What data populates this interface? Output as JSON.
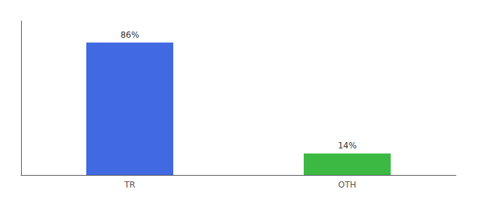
{
  "chart_data": {
    "type": "bar",
    "categories": [
      "TR",
      "OTH"
    ],
    "values": [
      86,
      14
    ],
    "value_labels": [
      "86%",
      "14%"
    ],
    "colors": [
      "#4169e1",
      "#3cb943"
    ],
    "ylim": [
      0,
      100
    ],
    "grid": false,
    "data_labels": true,
    "tick_labels": "x"
  }
}
